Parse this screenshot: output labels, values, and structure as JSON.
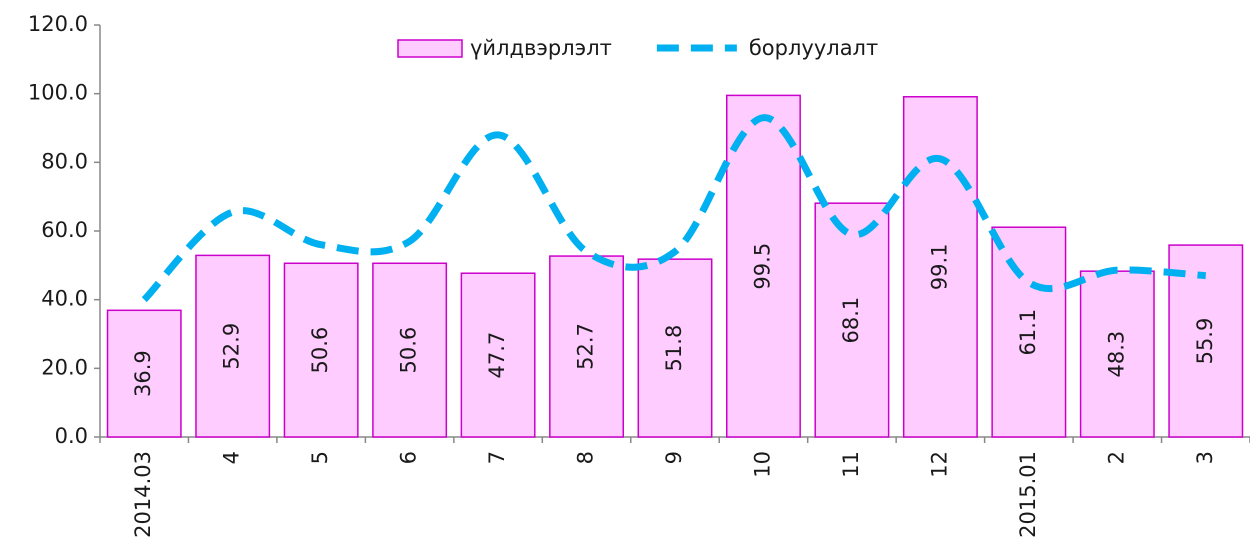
{
  "chart_data": {
    "type": "bar",
    "categories": [
      "2014.03",
      "4",
      "5",
      "6",
      "7",
      "8",
      "9",
      "10",
      "11",
      "12",
      "2015.01",
      "2",
      "3"
    ],
    "series": [
      {
        "name": "үйлдвэрлэлт",
        "type": "bar",
        "color": "#ffccff",
        "edge_color": "#cc00cc",
        "values": [
          36.9,
          52.9,
          50.6,
          50.6,
          47.7,
          52.7,
          51.8,
          99.5,
          68.1,
          99.1,
          61.1,
          48.3,
          55.9
        ]
      },
      {
        "name": "борлуулалт",
        "type": "line",
        "color": "#00b0f0",
        "values": [
          40,
          65.5,
          56,
          57,
          88,
          54,
          54,
          93,
          59,
          81,
          45,
          48.6,
          47
        ]
      }
    ],
    "ylim": [
      0,
      120
    ],
    "yticks": [
      {
        "value": 0,
        "label": "0.0"
      },
      {
        "value": 20,
        "label": "20.0"
      },
      {
        "value": 40,
        "label": "40.0"
      },
      {
        "value": 60,
        "label": "60.0"
      },
      {
        "value": 80,
        "label": "80.0"
      },
      {
        "value": 100,
        "label": "100.0"
      },
      {
        "value": 120,
        "label": "120.0"
      }
    ],
    "legend": "top"
  }
}
